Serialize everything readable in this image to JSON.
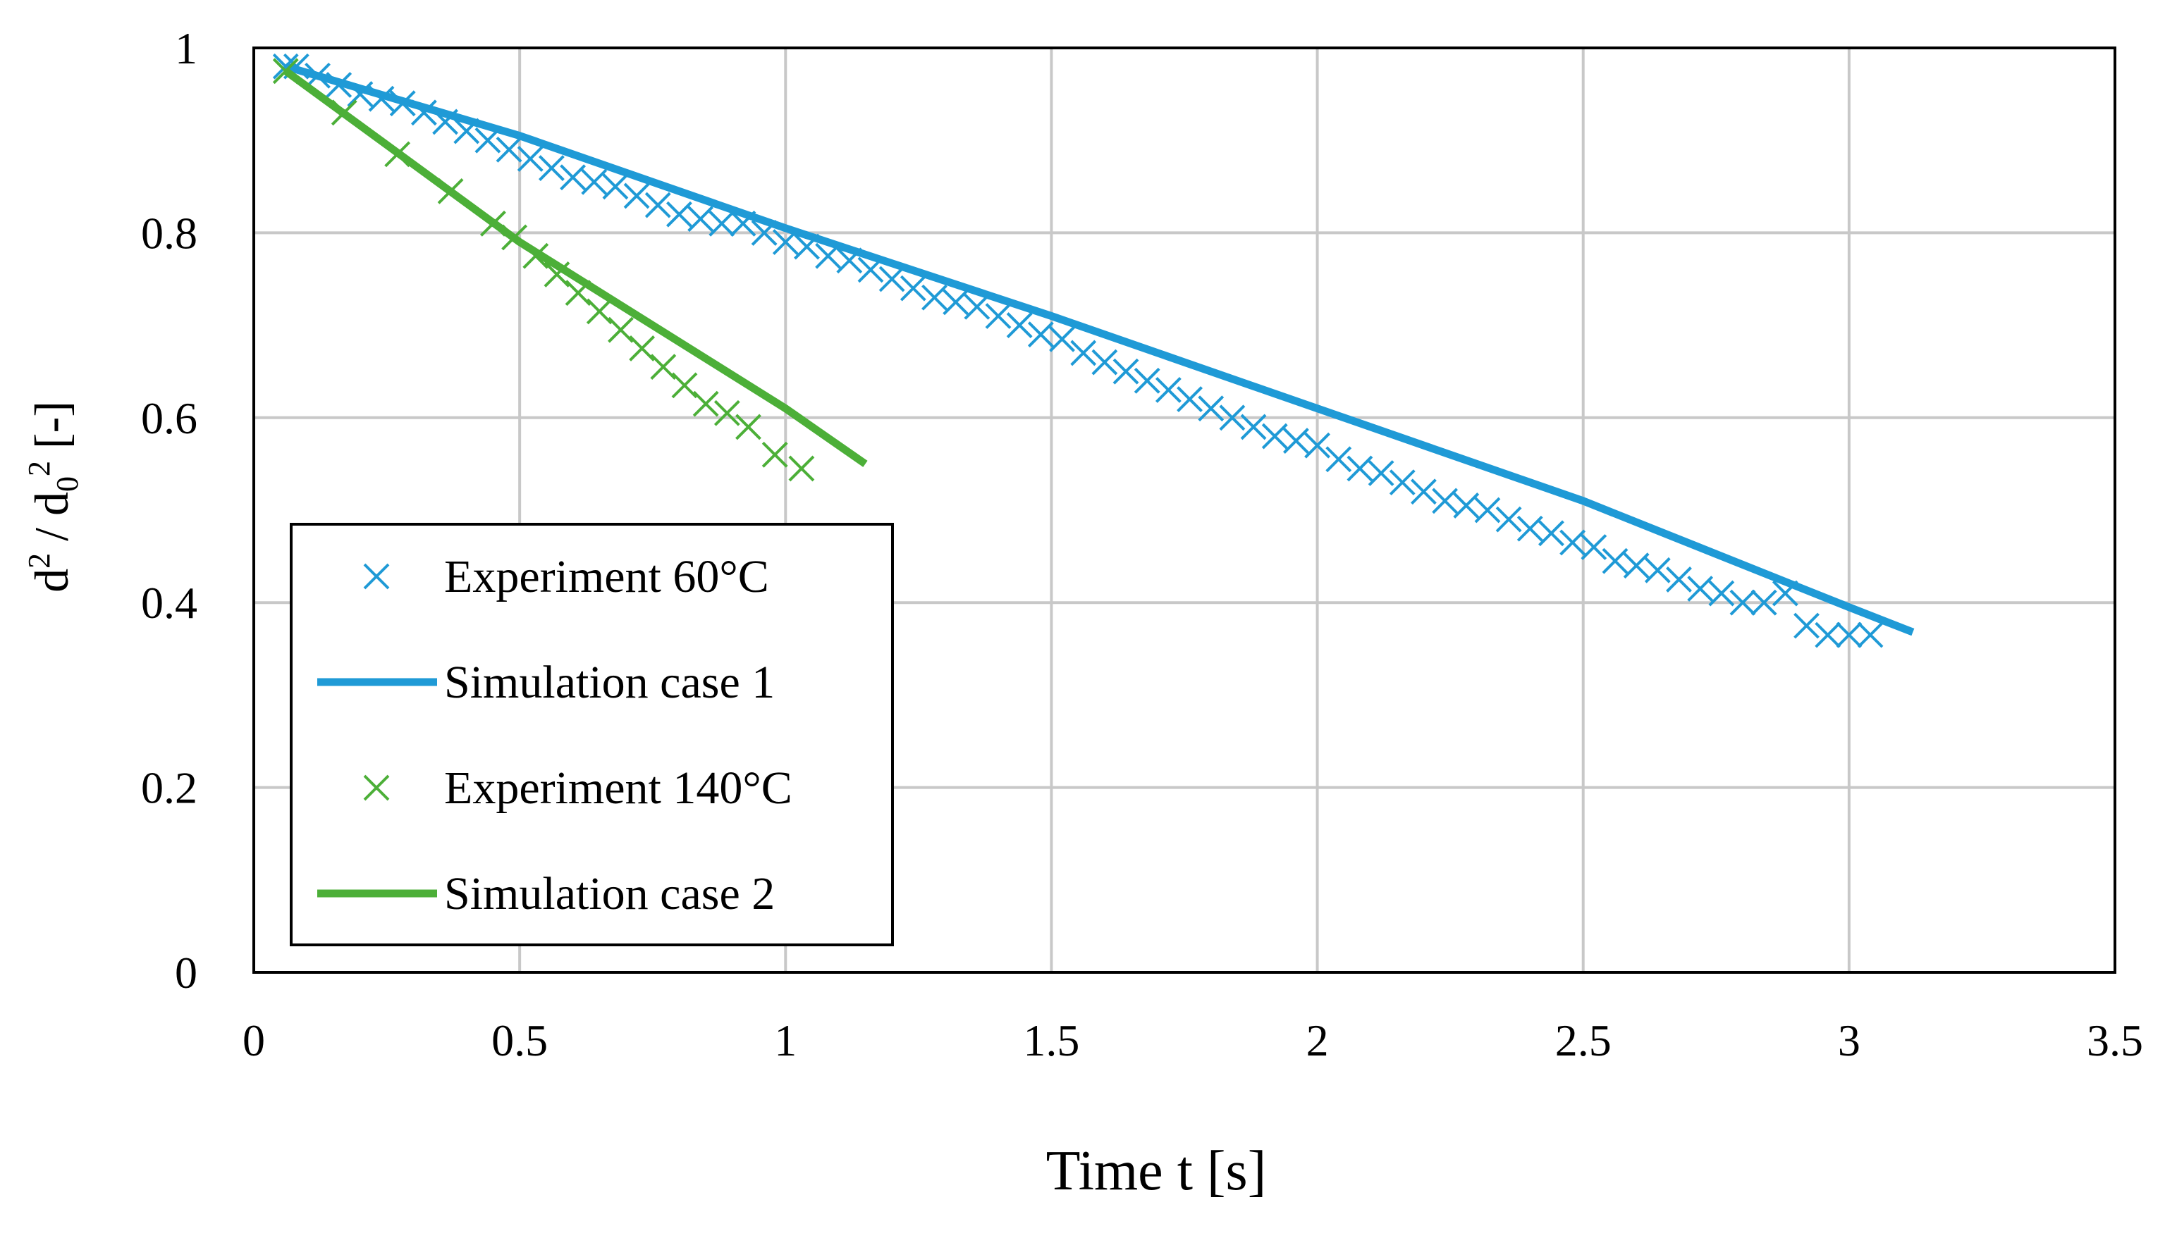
{
  "chart_data": {
    "type": "scatter",
    "title": "",
    "xlabel": "Time t [s]",
    "ylabel_parts": {
      "d": "d",
      "sup1": "2",
      "slash": " / ",
      "d0": "d",
      "sub0": "0",
      "sup2": "2",
      "unit": " [-]"
    },
    "xlim": [
      0,
      3.5
    ],
    "ylim": [
      0,
      1
    ],
    "xticks": [
      0,
      0.5,
      1,
      1.5,
      2,
      2.5,
      3,
      3.5
    ],
    "yticks": [
      0,
      0.2,
      0.4,
      0.6,
      0.8,
      1
    ],
    "xtick_labels": [
      "0",
      "0.5",
      "1",
      "1.5",
      "2",
      "2.5",
      "3",
      "3.5"
    ],
    "ytick_labels": [
      "0",
      "0.2",
      "0.4",
      "0.6",
      "0.8",
      "1"
    ],
    "grid": true,
    "legend_position": "bottom-left",
    "series": [
      {
        "name": "Experiment 60°C",
        "kind": "marker-x",
        "color": "#1F9AD6",
        "x": [
          0.06,
          0.08,
          0.12,
          0.16,
          0.2,
          0.24,
          0.28,
          0.32,
          0.36,
          0.4,
          0.44,
          0.48,
          0.52,
          0.56,
          0.6,
          0.64,
          0.68,
          0.72,
          0.76,
          0.8,
          0.84,
          0.88,
          0.92,
          0.96,
          1.0,
          1.04,
          1.08,
          1.12,
          1.16,
          1.2,
          1.24,
          1.28,
          1.32,
          1.36,
          1.4,
          1.44,
          1.48,
          1.52,
          1.56,
          1.6,
          1.64,
          1.68,
          1.72,
          1.76,
          1.8,
          1.84,
          1.88,
          1.92,
          1.96,
          2.0,
          2.04,
          2.08,
          2.12,
          2.16,
          2.2,
          2.24,
          2.28,
          2.32,
          2.36,
          2.4,
          2.44,
          2.48,
          2.52,
          2.56,
          2.6,
          2.64,
          2.68,
          2.72,
          2.76,
          2.8,
          2.84,
          2.88,
          2.92,
          2.96,
          3.0,
          3.04
        ],
        "y": [
          0.98,
          0.98,
          0.97,
          0.96,
          0.95,
          0.945,
          0.94,
          0.93,
          0.92,
          0.91,
          0.9,
          0.89,
          0.88,
          0.87,
          0.86,
          0.855,
          0.85,
          0.84,
          0.83,
          0.82,
          0.815,
          0.81,
          0.81,
          0.8,
          0.79,
          0.785,
          0.775,
          0.77,
          0.76,
          0.75,
          0.74,
          0.73,
          0.725,
          0.72,
          0.71,
          0.7,
          0.69,
          0.685,
          0.67,
          0.66,
          0.65,
          0.64,
          0.63,
          0.62,
          0.61,
          0.6,
          0.59,
          0.58,
          0.575,
          0.57,
          0.555,
          0.545,
          0.54,
          0.53,
          0.52,
          0.51,
          0.505,
          0.5,
          0.49,
          0.48,
          0.475,
          0.465,
          0.46,
          0.445,
          0.44,
          0.435,
          0.425,
          0.415,
          0.41,
          0.4,
          0.4,
          0.41,
          0.375,
          0.365,
          0.365,
          0.365
        ]
      },
      {
        "name": "Simulation case 1",
        "kind": "line",
        "color": "#1F9AD6",
        "x": [
          0.06,
          0.5,
          1.0,
          1.5,
          2.0,
          2.5,
          3.0,
          3.12
        ],
        "y": [
          0.98,
          0.905,
          0.805,
          0.71,
          0.61,
          0.51,
          0.395,
          0.368
        ]
      },
      {
        "name": "Experiment 140°C",
        "kind": "marker-x",
        "color": "#4CAF38",
        "x": [
          0.06,
          0.17,
          0.27,
          0.37,
          0.45,
          0.49,
          0.53,
          0.57,
          0.61,
          0.65,
          0.69,
          0.73,
          0.77,
          0.81,
          0.85,
          0.89,
          0.93,
          0.98,
          1.03
        ],
        "y": [
          0.975,
          0.93,
          0.885,
          0.845,
          0.81,
          0.795,
          0.775,
          0.755,
          0.735,
          0.715,
          0.695,
          0.675,
          0.655,
          0.635,
          0.615,
          0.605,
          0.59,
          0.56,
          0.545
        ]
      },
      {
        "name": "Simulation case 2",
        "kind": "line",
        "color": "#4CAF38",
        "x": [
          0.06,
          0.5,
          1.0,
          1.15
        ],
        "y": [
          0.975,
          0.79,
          0.61,
          0.55
        ]
      }
    ]
  }
}
